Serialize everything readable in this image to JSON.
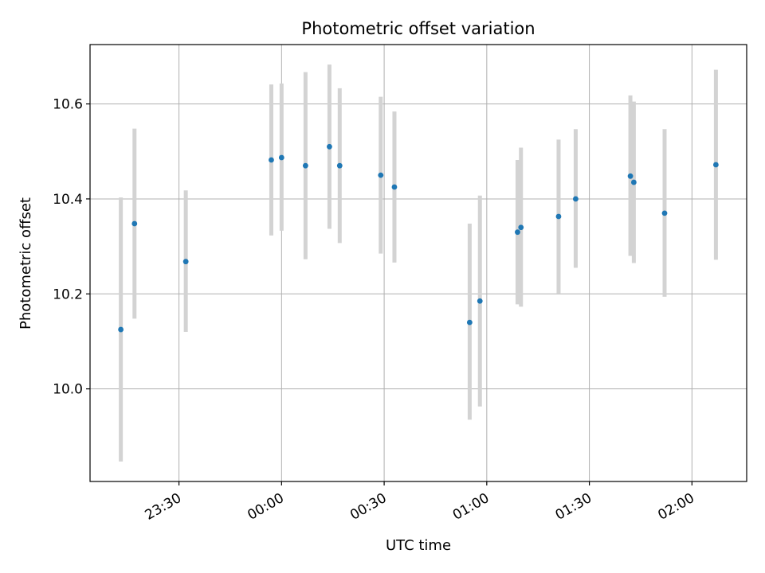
{
  "chart_data": {
    "type": "scatter",
    "title": "Photometric offset variation",
    "xlabel": "UTC time",
    "ylabel": "Photometric offset",
    "x_unit": "UTC hh:mm (times after midnight belong to the next day)",
    "x_ticks": [
      "23:30",
      "00:00",
      "00:30",
      "01:00",
      "01:30",
      "02:00"
    ],
    "y_ticks": [
      "10.0",
      "10.2",
      "10.4",
      "10.6"
    ],
    "xlim": [
      "23:04",
      "02:16"
    ],
    "ylim": [
      9.805,
      10.725
    ],
    "grid": true,
    "legend": "none",
    "colors": {
      "point": "#1f77b4",
      "errorbar": "#d3d3d3",
      "grid": "#b0b0b0",
      "axes": "#000000"
    },
    "points": [
      {
        "x": "23:13",
        "y": 10.125,
        "err_low": 9.847,
        "err_high": 10.403
      },
      {
        "x": "23:17",
        "y": 10.348,
        "err_low": 10.148,
        "err_high": 10.548
      },
      {
        "x": "23:32",
        "y": 10.268,
        "err_low": 10.12,
        "err_high": 10.418
      },
      {
        "x": "23:57",
        "y": 10.482,
        "err_low": 10.323,
        "err_high": 10.641
      },
      {
        "x": "00:00",
        "y": 10.487,
        "err_low": 10.333,
        "err_high": 10.643
      },
      {
        "x": "00:07",
        "y": 10.47,
        "err_low": 10.273,
        "err_high": 10.667
      },
      {
        "x": "00:14",
        "y": 10.51,
        "err_low": 10.337,
        "err_high": 10.683
      },
      {
        "x": "00:17",
        "y": 10.47,
        "err_low": 10.307,
        "err_high": 10.633
      },
      {
        "x": "00:29",
        "y": 10.45,
        "err_low": 10.285,
        "err_high": 10.615
      },
      {
        "x": "00:33",
        "y": 10.425,
        "err_low": 10.266,
        "err_high": 10.584
      },
      {
        "x": "00:55",
        "y": 10.14,
        "err_low": 9.935,
        "err_high": 10.348
      },
      {
        "x": "00:58",
        "y": 10.185,
        "err_low": 9.963,
        "err_high": 10.407
      },
      {
        "x": "01:09",
        "y": 10.33,
        "err_low": 10.178,
        "err_high": 10.482
      },
      {
        "x": "01:10",
        "y": 10.34,
        "err_low": 10.173,
        "err_high": 10.508
      },
      {
        "x": "01:21",
        "y": 10.363,
        "err_low": 10.201,
        "err_high": 10.525
      },
      {
        "x": "01:26",
        "y": 10.4,
        "err_low": 10.255,
        "err_high": 10.547
      },
      {
        "x": "01:42",
        "y": 10.448,
        "err_low": 10.28,
        "err_high": 10.618
      },
      {
        "x": "01:43",
        "y": 10.435,
        "err_low": 10.265,
        "err_high": 10.605
      },
      {
        "x": "01:52",
        "y": 10.37,
        "err_low": 10.194,
        "err_high": 10.547
      },
      {
        "x": "02:07",
        "y": 10.472,
        "err_low": 10.272,
        "err_high": 10.672
      }
    ]
  }
}
